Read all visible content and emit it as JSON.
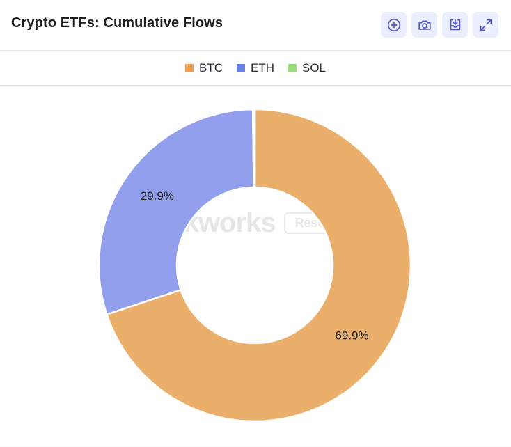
{
  "header": {
    "title": "Crypto ETFs: Cumulative Flows",
    "toolbar": [
      {
        "name": "add-button",
        "icon": "plus-circle-icon"
      },
      {
        "name": "screenshot-button",
        "icon": "camera-icon"
      },
      {
        "name": "download-button",
        "icon": "download-tray-icon"
      },
      {
        "name": "expand-button",
        "icon": "expand-icon"
      }
    ]
  },
  "watermark": {
    "main": "Blockworks",
    "badge": "Research"
  },
  "colors": {
    "accent_icon": "#5b63d3",
    "button_bg": "#ebeeff"
  },
  "chart_data": {
    "type": "pie",
    "donut": true,
    "title": "Crypto ETFs: Cumulative Flows",
    "legend_position": "top-center",
    "series": [
      {
        "name": "BTC",
        "value": 69.9,
        "label": "69.9%",
        "color": "#ebaf6c",
        "legend_color": "#eb9e52"
      },
      {
        "name": "ETH",
        "value": 29.9,
        "label": "29.9%",
        "color": "#919fec",
        "legend_color": "#6c7fe3"
      },
      {
        "name": "SOL",
        "value": 0.2,
        "label": "",
        "color": "#a6e08c",
        "legend_color": "#98dc7c"
      }
    ]
  }
}
